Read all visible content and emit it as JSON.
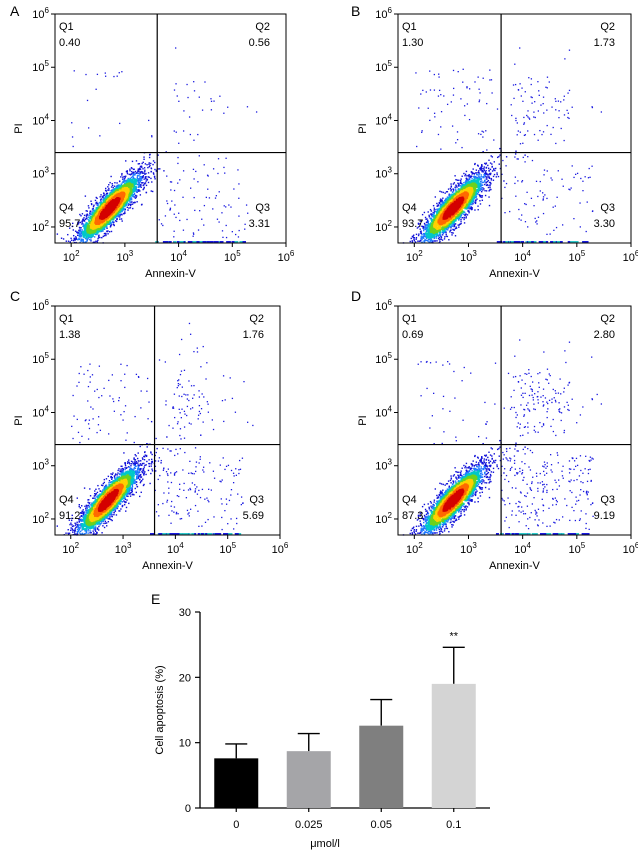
{
  "chart_data": [
    {
      "type": "scatter",
      "panel_letter": "A",
      "xlabel": "Annexin-V",
      "ylabel": "PI",
      "scale": "log",
      "xlim": [
        50,
        1000000
      ],
      "ylim": [
        50,
        1000000
      ],
      "x_ticks": [
        "10^2",
        "10^3",
        "10^4",
        "10^5",
        "10^6"
      ],
      "y_ticks": [
        "10^2",
        "10^3",
        "10^4",
        "10^5",
        "10^6"
      ],
      "gate": {
        "x": 4000,
        "y": 2500
      },
      "quadrants": [
        {
          "name": "Q1",
          "value": "0.40"
        },
        {
          "name": "Q2",
          "value": "0.56"
        },
        {
          "name": "Q3",
          "value": "3.31"
        },
        {
          "name": "Q4",
          "value": "95.7"
        }
      ]
    },
    {
      "type": "scatter",
      "panel_letter": "B",
      "xlabel": "Annexin-V",
      "ylabel": "PI",
      "scale": "log",
      "xlim": [
        50,
        1000000
      ],
      "ylim": [
        50,
        1000000
      ],
      "x_ticks": [
        "10^2",
        "10^3",
        "10^4",
        "10^5",
        "10^6"
      ],
      "y_ticks": [
        "10^2",
        "10^3",
        "10^4",
        "10^5",
        "10^6"
      ],
      "gate": {
        "x": 4000,
        "y": 2500
      },
      "quadrants": [
        {
          "name": "Q1",
          "value": "1.30"
        },
        {
          "name": "Q2",
          "value": "1.73"
        },
        {
          "name": "Q3",
          "value": "3.30"
        },
        {
          "name": "Q4",
          "value": "93.7"
        }
      ]
    },
    {
      "type": "scatter",
      "panel_letter": "C",
      "xlabel": "Annexin-V",
      "ylabel": "PI",
      "scale": "log",
      "xlim": [
        50,
        1000000
      ],
      "ylim": [
        50,
        1000000
      ],
      "x_ticks": [
        "10^2",
        "10^3",
        "10^4",
        "10^5",
        "10^6"
      ],
      "y_ticks": [
        "10^2",
        "10^3",
        "10^4",
        "10^5",
        "10^6"
      ],
      "gate": {
        "x": 4000,
        "y": 2500
      },
      "quadrants": [
        {
          "name": "Q1",
          "value": "1.38"
        },
        {
          "name": "Q2",
          "value": "1.76"
        },
        {
          "name": "Q3",
          "value": "5.69"
        },
        {
          "name": "Q4",
          "value": "91.2"
        }
      ]
    },
    {
      "type": "scatter",
      "panel_letter": "D",
      "xlabel": "Annexin-V",
      "ylabel": "PI",
      "scale": "log",
      "xlim": [
        50,
        1000000
      ],
      "ylim": [
        50,
        1000000
      ],
      "x_ticks": [
        "10^2",
        "10^3",
        "10^4",
        "10^5",
        "10^6"
      ],
      "y_ticks": [
        "10^2",
        "10^3",
        "10^4",
        "10^5",
        "10^6"
      ],
      "gate": {
        "x": 4000,
        "y": 2500
      },
      "quadrants": [
        {
          "name": "Q1",
          "value": "0.69"
        },
        {
          "name": "Q2",
          "value": "2.80"
        },
        {
          "name": "Q3",
          "value": "9.19"
        },
        {
          "name": "Q4",
          "value": "87.3"
        }
      ]
    },
    {
      "type": "bar",
      "panel_letter": "E",
      "categories": [
        "0",
        "0.025",
        "0.05",
        "0.1"
      ],
      "values": [
        7.6,
        8.7,
        12.6,
        19.0
      ],
      "errors": [
        2.2,
        2.7,
        4.0,
        5.6
      ],
      "colors": [
        "#000000",
        "#a5a5a8",
        "#7f7f7f",
        "#d4d4d4"
      ],
      "significance": [
        "",
        "",
        "",
        "**"
      ],
      "xlabel": "μmol/l",
      "ylabel": "Cell apoptosis (%)",
      "ylim": [
        0,
        30
      ],
      "yticks": [
        "0",
        "10",
        "20",
        "30"
      ]
    }
  ]
}
